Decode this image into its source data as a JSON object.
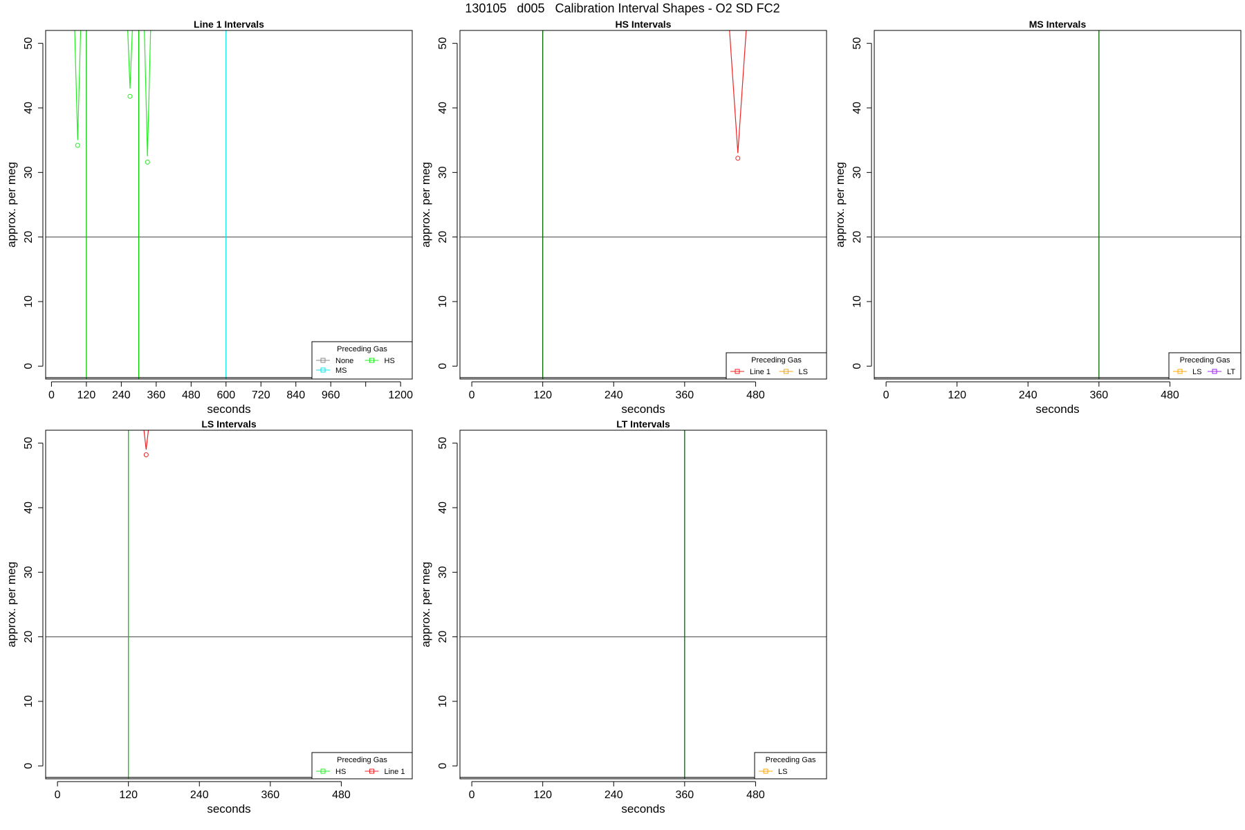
{
  "figure": {
    "title": "130105   d005   Calibration Interval Shapes - O2 SD FC2"
  },
  "chart_data": [
    {
      "type": "line",
      "title": "Line 1 Intervals",
      "xlabel": "seconds",
      "ylabel": "approx. per meg",
      "xlim": [
        -20,
        1240
      ],
      "ylim": [
        -2,
        52
      ],
      "xticks": [
        0,
        120,
        240,
        360,
        480,
        600,
        720,
        840,
        960,
        1080,
        1200
      ],
      "xtick_labels": [
        "0",
        "120",
        "240",
        "360",
        "480",
        "600",
        "720",
        "840",
        "960",
        "",
        "1200"
      ],
      "yticks": [
        0,
        10,
        20,
        30,
        40,
        50
      ],
      "hline": 20,
      "vlines": [
        {
          "x": 120,
          "color": "#00cc00"
        },
        {
          "x": 300,
          "color": "#00cc00"
        },
        {
          "x": 600,
          "color": "#00e5ee"
        }
      ],
      "series": [
        {
          "color": "#22ee22",
          "x": [
            75,
            90,
            105
          ],
          "y": [
            60,
            35,
            60
          ],
          "marker": {
            "x": 90,
            "y": 34.2
          }
        },
        {
          "color": "#22ee22",
          "x": [
            255,
            270,
            285
          ],
          "y": [
            60,
            43,
            60
          ],
          "marker": {
            "x": 270,
            "y": 41.8
          }
        },
        {
          "color": "#22ee22",
          "x": [
            315,
            330,
            345
          ],
          "y": [
            60,
            32.5,
            60
          ],
          "marker": {
            "x": 330,
            "y": 31.6
          }
        }
      ],
      "legend": {
        "title": "Preceding Gas",
        "position": "bottom-right",
        "entries": [
          {
            "label": "None",
            "color": "#888888"
          },
          {
            "label": "HS",
            "color": "#22ee22"
          },
          {
            "label": "MS",
            "color": "#00e5ee"
          }
        ]
      }
    },
    {
      "type": "line",
      "title": "HS Intervals",
      "xlabel": "seconds",
      "ylabel": "approx. per meg",
      "xlim": [
        -20,
        600
      ],
      "ylim": [
        -2,
        52
      ],
      "xticks": [
        0,
        120,
        240,
        360,
        480
      ],
      "xtick_labels": [
        "0",
        "120",
        "240",
        "360",
        "480"
      ],
      "yticks": [
        0,
        10,
        20,
        30,
        40,
        50
      ],
      "hline": 20,
      "vlines": [
        {
          "x": 120,
          "color": "#006400"
        }
      ],
      "series": [
        {
          "color": "#ee2222",
          "x": [
            430,
            450,
            470
          ],
          "y": [
            60,
            33,
            60
          ],
          "marker": {
            "x": 450,
            "y": 32.2
          }
        }
      ],
      "legend": {
        "title": "Preceding Gas",
        "position": "bottom-right",
        "entries": [
          {
            "label": "Line 1",
            "color": "#ee2222"
          },
          {
            "label": "LS",
            "color": "#ffa500"
          }
        ]
      }
    },
    {
      "type": "line",
      "title": "MS Intervals",
      "xlabel": "seconds",
      "ylabel": "approx. per meg",
      "xlim": [
        -20,
        600
      ],
      "ylim": [
        -2,
        52
      ],
      "xticks": [
        0,
        120,
        240,
        360,
        480
      ],
      "xtick_labels": [
        "0",
        "120",
        "240",
        "360",
        "480"
      ],
      "yticks": [
        0,
        10,
        20,
        30,
        40,
        50
      ],
      "hline": 20,
      "vlines": [
        {
          "x": 360,
          "color": "#006400"
        }
      ],
      "series": [],
      "legend": {
        "title": "Preceding Gas",
        "position": "bottom-right",
        "entries": [
          {
            "label": "LS",
            "color": "#ffa500"
          },
          {
            "label": "LT",
            "color": "#a020f0"
          }
        ]
      }
    },
    {
      "type": "line",
      "title": "LS Intervals",
      "xlabel": "seconds",
      "ylabel": "approx. per meg",
      "xlim": [
        -20,
        600
      ],
      "ylim": [
        -2,
        52
      ],
      "xticks": [
        0,
        120,
        240,
        360,
        480
      ],
      "xtick_labels": [
        "0",
        "120",
        "240",
        "360",
        "480"
      ],
      "yticks": [
        0,
        10,
        20,
        30,
        40,
        50
      ],
      "hline": 20,
      "vlines": [
        {
          "x": 120,
          "color": "#00cc00"
        }
      ],
      "series": [
        {
          "color": "#ee2222",
          "x": [
            145,
            150,
            155
          ],
          "y": [
            53,
            49,
            53
          ],
          "marker": {
            "x": 150,
            "y": 48.2
          }
        }
      ],
      "legend": {
        "title": "Preceding Gas",
        "position": "bottom-right",
        "entries": [
          {
            "label": "HS",
            "color": "#22ee22"
          },
          {
            "label": "Line 1",
            "color": "#ee2222"
          }
        ]
      }
    },
    {
      "type": "line",
      "title": "LT Intervals",
      "xlabel": "seconds",
      "ylabel": "approx. per meg",
      "xlim": [
        -20,
        600
      ],
      "ylim": [
        -2,
        52
      ],
      "xticks": [
        0,
        120,
        240,
        360,
        480
      ],
      "xtick_labels": [
        "0",
        "120",
        "240",
        "360",
        "480"
      ],
      "yticks": [
        0,
        10,
        20,
        30,
        40,
        50
      ],
      "hline": 20,
      "vlines": [
        {
          "x": 360,
          "color": "#006400"
        }
      ],
      "series": [],
      "legend": {
        "title": "Preceding Gas",
        "position": "bottom-right",
        "entries": [
          {
            "label": "LS",
            "color": "#ffa500"
          }
        ]
      }
    }
  ]
}
